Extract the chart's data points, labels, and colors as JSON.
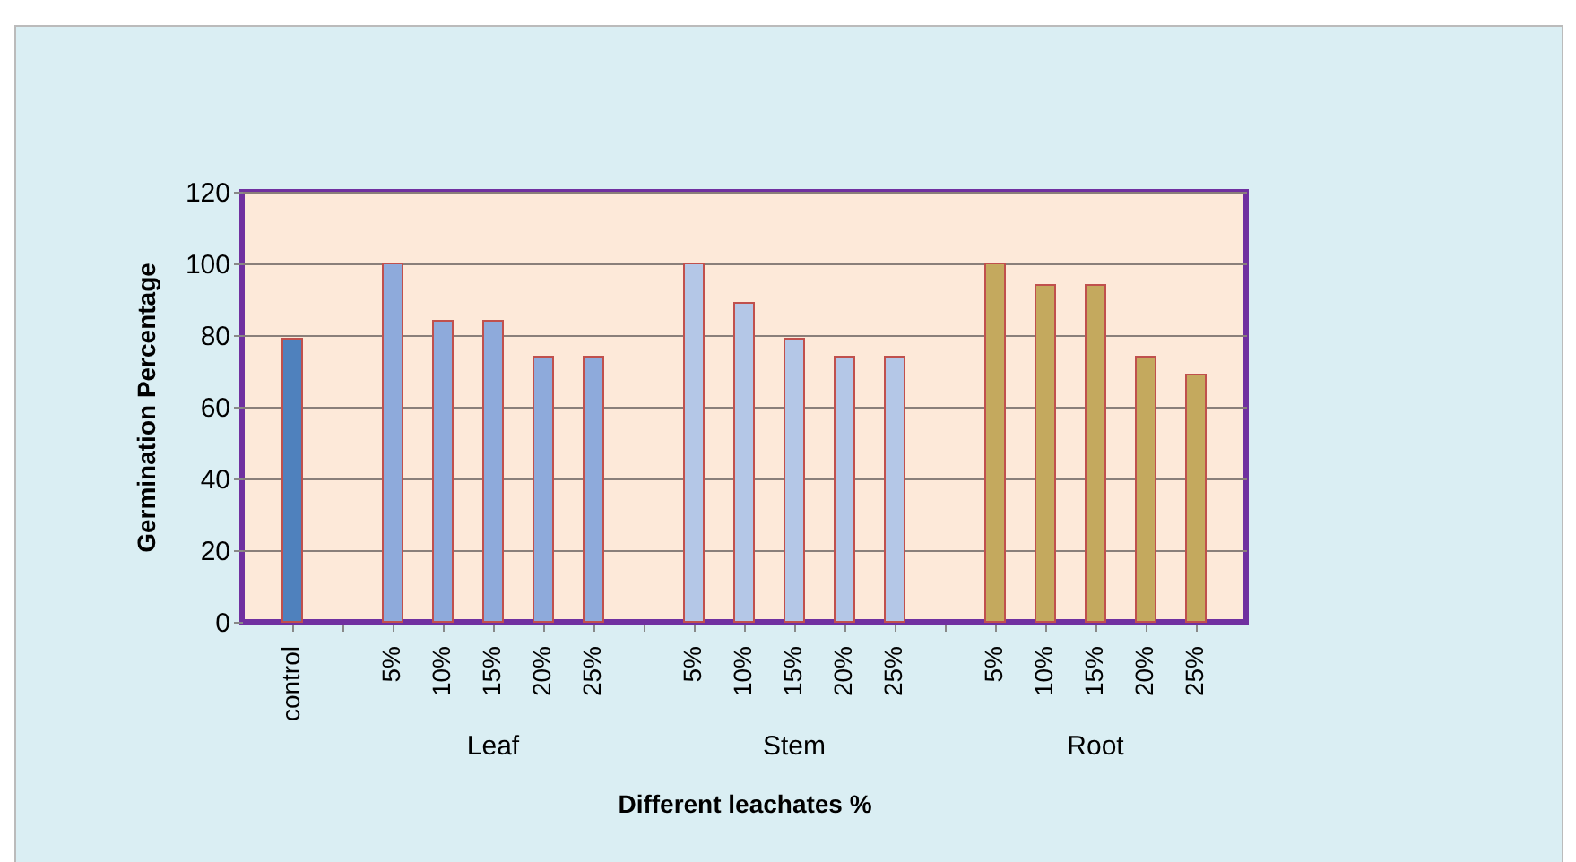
{
  "chart_data": {
    "type": "bar",
    "xlabel": "Different leachates %",
    "ylabel": "Germination Percentage",
    "categories": [
      "control",
      null,
      "5%",
      "10%",
      "15%",
      "20%",
      "25%",
      null,
      "5%",
      "10%",
      "15%",
      "20%",
      "25%",
      null,
      "5%",
      "10%",
      "15%",
      "20%",
      "25%"
    ],
    "values": [
      79,
      null,
      100,
      84,
      84,
      74,
      74,
      null,
      100,
      89,
      79,
      74,
      74,
      null,
      100,
      94,
      94,
      74,
      69
    ],
    "colors": [
      "#4f81bd",
      null,
      "#8eaadb",
      "#8eaadb",
      "#8eaadb",
      "#8eaadb",
      "#8eaadb",
      null,
      "#b4c7e7",
      "#b4c7e7",
      "#b4c7e7",
      "#b4c7e7",
      "#b4c7e7",
      null,
      "#c4a95e",
      "#c4a95e",
      "#c4a95e",
      "#c4a95e",
      "#c4a95e"
    ],
    "annotations": [
      "Leaf",
      "Stem",
      "Root"
    ],
    "ylim": [
      0,
      120
    ],
    "yticks": [
      0,
      20,
      40,
      60,
      80,
      100,
      120
    ],
    "grid": "y"
  }
}
